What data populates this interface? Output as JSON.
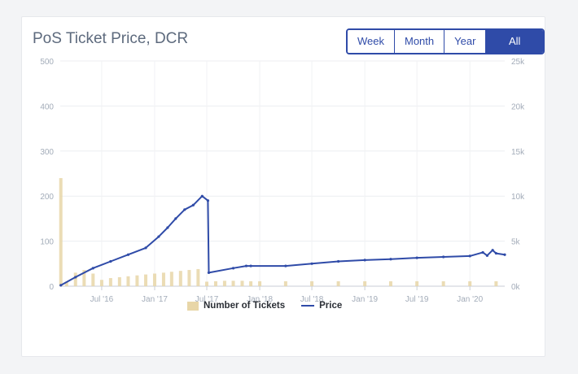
{
  "chart_data": {
    "type": "line",
    "title": "PoS Ticket Price, DCR",
    "range_buttons": [
      "Week",
      "Month",
      "Year",
      "All Time"
    ],
    "active_range": "All Time",
    "x": {
      "type": "date",
      "ticks": [
        "Jul '16",
        "Jan '17",
        "Jul '17",
        "Jan '18",
        "Jul '18",
        "Jan '19",
        "Jul '19",
        "Jan '20"
      ],
      "range": [
        "2016-02-08",
        "2020-05-01"
      ]
    },
    "y_left": {
      "ticks": [
        "0",
        "100",
        "200",
        "300",
        "400",
        "500"
      ],
      "range": [
        0,
        500
      ]
    },
    "y_right": {
      "ticks": [
        "0k",
        "5k",
        "10k",
        "15k",
        "20k",
        "25k"
      ],
      "range": [
        0,
        25000
      ]
    },
    "series": [
      {
        "name": "Number of Tickets",
        "type": "bar",
        "axis": "right",
        "color": "#e8d6a8",
        "points": [
          [
            "2016-02-10",
            12000
          ],
          [
            "2016-03-01",
            500
          ],
          [
            "2016-04-01",
            1500
          ],
          [
            "2016-05-01",
            1800
          ],
          [
            "2016-06-01",
            1400
          ],
          [
            "2016-07-01",
            700
          ],
          [
            "2016-08-01",
            900
          ],
          [
            "2016-09-01",
            1000
          ],
          [
            "2016-10-01",
            1100
          ],
          [
            "2016-11-01",
            1200
          ],
          [
            "2016-12-01",
            1300
          ],
          [
            "2017-01-01",
            1400
          ],
          [
            "2017-02-01",
            1500
          ],
          [
            "2017-03-01",
            1600
          ],
          [
            "2017-04-01",
            1700
          ],
          [
            "2017-05-01",
            1800
          ],
          [
            "2017-06-01",
            1900
          ],
          [
            "2017-07-01",
            500
          ],
          [
            "2017-08-01",
            550
          ],
          [
            "2017-09-01",
            600
          ],
          [
            "2017-10-01",
            600
          ],
          [
            "2017-11-01",
            600
          ],
          [
            "2017-12-01",
            550
          ],
          [
            "2018-01-01",
            550
          ],
          [
            "2018-04-01",
            550
          ],
          [
            "2018-07-01",
            550
          ],
          [
            "2018-10-01",
            550
          ],
          [
            "2019-01-01",
            550
          ],
          [
            "2019-04-01",
            550
          ],
          [
            "2019-07-01",
            550
          ],
          [
            "2019-10-01",
            550
          ],
          [
            "2020-01-01",
            550
          ],
          [
            "2020-04-01",
            550
          ]
        ]
      },
      {
        "name": "Price",
        "type": "line",
        "axis": "left",
        "color": "#2f4ba8",
        "points": [
          [
            "2016-02-10",
            2
          ],
          [
            "2016-04-01",
            20
          ],
          [
            "2016-06-01",
            40
          ],
          [
            "2016-08-01",
            55
          ],
          [
            "2016-10-01",
            70
          ],
          [
            "2016-12-01",
            85
          ],
          [
            "2017-01-15",
            110
          ],
          [
            "2017-02-15",
            130
          ],
          [
            "2017-03-15",
            150
          ],
          [
            "2017-04-15",
            170
          ],
          [
            "2017-05-15",
            180
          ],
          [
            "2017-06-15",
            200
          ],
          [
            "2017-07-05",
            190
          ],
          [
            "2017-07-08",
            30
          ],
          [
            "2017-10-01",
            40
          ],
          [
            "2017-11-15",
            45
          ],
          [
            "2017-12-01",
            45
          ],
          [
            "2018-04-01",
            45
          ],
          [
            "2018-07-01",
            50
          ],
          [
            "2018-10-01",
            55
          ],
          [
            "2019-01-01",
            58
          ],
          [
            "2019-04-01",
            60
          ],
          [
            "2019-07-01",
            63
          ],
          [
            "2019-10-01",
            65
          ],
          [
            "2020-01-01",
            67
          ],
          [
            "2020-02-15",
            75
          ],
          [
            "2020-03-01",
            68
          ],
          [
            "2020-03-20",
            80
          ],
          [
            "2020-04-01",
            73
          ],
          [
            "2020-05-01",
            70
          ]
        ]
      }
    ],
    "legend": [
      "Number of Tickets",
      "Price"
    ],
    "grid": true,
    "legend_position": "bottom-center"
  }
}
